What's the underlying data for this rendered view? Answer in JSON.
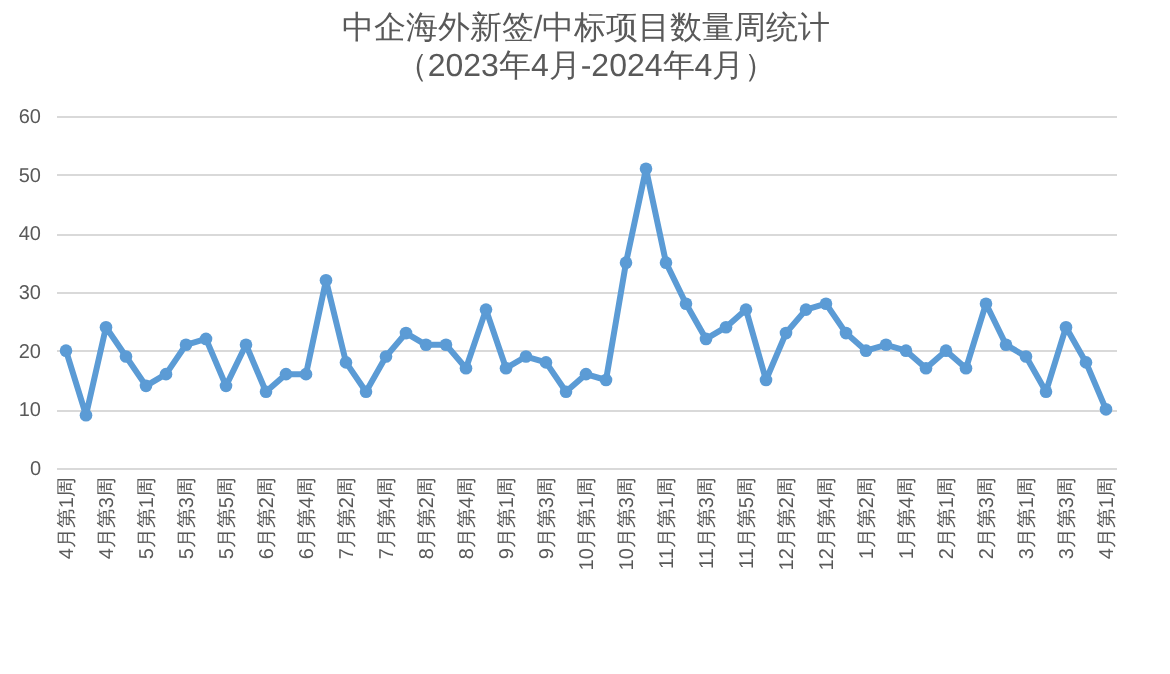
{
  "chart_data": {
    "type": "line",
    "title": "中企海外新签/中标项目数量周统计",
    "subtitle": "（2023年4月-2024年4月）",
    "categories": [
      "4月第1周",
      null,
      "4月第3周",
      null,
      "5月第1周",
      null,
      "5月第3周",
      null,
      "5月第5周",
      null,
      "6月第2周",
      null,
      "6月第4周",
      null,
      "7月第2周",
      null,
      "7月第4周",
      null,
      "8月第2周",
      null,
      "8月第4周",
      null,
      "9月第1周",
      null,
      "9月第3周",
      null,
      "10月第1周",
      null,
      "10月第3周",
      null,
      "11月第1周",
      null,
      "11月第3周",
      null,
      "11月第5周",
      null,
      "12月第2周",
      null,
      "12月第4周",
      null,
      "1月第2周",
      null,
      "1月第4周",
      null,
      "2月第1周",
      null,
      "2月第3周",
      null,
      "3月第1周",
      null,
      "3月第3周",
      null,
      "4月第1周"
    ],
    "series": [
      {
        "color": "#5b9bd5",
        "values": [
          20,
          9,
          24,
          19,
          14,
          16,
          21,
          22,
          14,
          21,
          13,
          16,
          16,
          32,
          18,
          13,
          19,
          23,
          21,
          21,
          17,
          27,
          17,
          19,
          18,
          13,
          16,
          15,
          35,
          51,
          35,
          28,
          22,
          24,
          27,
          15,
          23,
          27,
          28,
          23,
          20,
          21,
          20,
          17,
          20,
          17,
          28,
          21,
          19,
          13,
          24,
          18,
          10
        ]
      }
    ],
    "ylim": [
      0,
      60
    ],
    "yticks": [
      0,
      10,
      20,
      30,
      40,
      50,
      60
    ],
    "grid": "y",
    "marker": "circle",
    "line_style": "solid"
  }
}
